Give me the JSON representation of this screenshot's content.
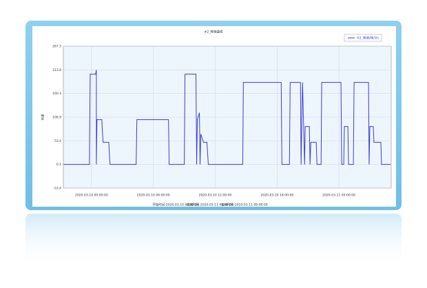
{
  "chart_data": {
    "type": "line",
    "title": "#2_转速曲线",
    "y_label": "转速",
    "x": [
      -2.73,
      -0.2,
      -0.13,
      0.4,
      0.47,
      0.47,
      0.53,
      1,
      1.07,
      1.13,
      1.67,
      1.8,
      4.33,
      4.4,
      7.47,
      7.53,
      9,
      9.07,
      10.13,
      10.2,
      10.27,
      10.47,
      10.53,
      10.6,
      10.87,
      11.2,
      11.33,
      14.67,
      14.73,
      18.4,
      18.47,
      19.2,
      19.27,
      20.27,
      20.33,
      20.47,
      20.67,
      20.73,
      21.13,
      21.2,
      21.27,
      21.8,
      21.87,
      22.27,
      22.33,
      24.2,
      24.27,
      24.47,
      24.53,
      24.87,
      24.93,
      25.4,
      25.47,
      26.87,
      26.93,
      27,
      27.33,
      27.4,
      28.07,
      28.13,
      29
    ],
    "series": [
      {
        "name": "#2_转速(转/分)",
        "color": "#3a3ad8",
        "values": [
          0.1,
          0.1,
          204.1,
          204.1,
          213.4,
          0.1,
          101.3,
          101.3,
          68.6,
          49.9,
          49.9,
          0.1,
          0.1,
          101.3,
          101.3,
          0.1,
          0.1,
          204.1,
          204.1,
          0.1,
          101.3,
          116.9,
          0.1,
          68.6,
          49.9,
          49.9,
          0.1,
          0.1,
          185.4,
          185.4,
          0.1,
          0.1,
          185.4,
          185.4,
          0.1,
          185.4,
          0.1,
          85.7,
          85.7,
          0.1,
          49.9,
          49.9,
          0.1,
          0.1,
          185.4,
          185.4,
          0.1,
          0.1,
          85.7,
          85.7,
          0.1,
          0.1,
          185.4,
          185.4,
          0.1,
          85.7,
          85.7,
          49.9,
          49.9,
          0.1,
          0.1
        ]
      }
    ],
    "xlim": [
      -2.73,
      29.07
    ],
    "xticks": [
      {
        "value": 0,
        "label": "2020-03-10 00:00:00"
      },
      {
        "value": 6,
        "label": "2020-03-10 06:00:00"
      },
      {
        "value": 12,
        "label": "2020-03-10 12:00:00"
      },
      {
        "value": 18,
        "label": "2020-03-10 18:00:00"
      },
      {
        "value": 24,
        "label": "2020-03-11 00:00:00"
      }
    ],
    "ylim": [
      -53.4,
      267.3
    ],
    "yticks": [
      -53.4,
      0.1,
      53.4,
      106.9,
      160.3,
      213.8,
      267.3
    ],
    "grid": true,
    "legend": "top-right",
    "footer": [
      "开始时间:2020-03-10 00:00:00",
      "结束时间:2020-03-11 05:00:00",
      "查询时间:2020-03-11 09:00:00"
    ]
  }
}
